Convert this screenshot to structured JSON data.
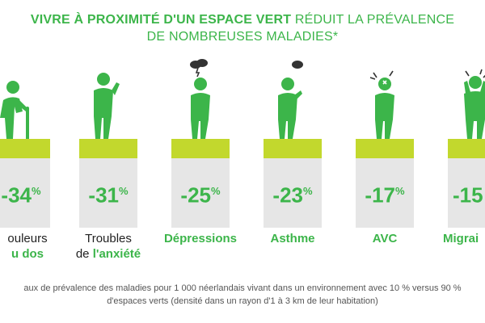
{
  "title": {
    "bold": "VIVRE À PROXIMITÉ D'UN ESPACE VERT",
    "light_line1": "RÉDUIT LA PRÉVALENCE",
    "light_line2": "DE NOMBREUSES MALADIES*"
  },
  "items": [
    {
      "value": "-34",
      "unit": "%",
      "label_top": "ouleurs",
      "label_bottom": "u dos"
    },
    {
      "value": "-31",
      "unit": "%",
      "label_top": "Troubles",
      "label_prefix": "de ",
      "label_bottom": "l'anxiété"
    },
    {
      "value": "-25",
      "unit": "%",
      "label_top": "",
      "label_bottom": "Dépressions"
    },
    {
      "value": "-23",
      "unit": "%",
      "label_top": "",
      "label_bottom": "Asthme"
    },
    {
      "value": "-17",
      "unit": "%",
      "label_top": "",
      "label_bottom": "AVC"
    },
    {
      "value": "-15",
      "unit": "",
      "label_top": "",
      "label_bottom": "Migrai"
    }
  ],
  "footnote": {
    "line1": "aux de prévalence des maladies pour 1 000 néerlandais vivant dans un environnement avec 10 % versus 90 %",
    "line2": "d'espaces verts (densité dans un rayon d'1 à 3 km de leur habitation)"
  },
  "colors": {
    "green": "#3cb54a",
    "lime": "#c2d82d",
    "grey": "#e6e6e6"
  }
}
